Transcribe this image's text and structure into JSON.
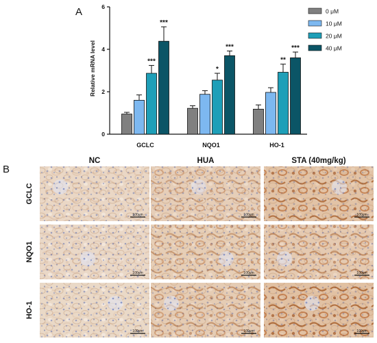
{
  "panel_a_label": "A",
  "panel_b_label": "B",
  "chart_data": {
    "type": "bar",
    "ylabel": "Relative mRNA level",
    "xlabel": "",
    "ylim": [
      0,
      6
    ],
    "yticks": [
      0,
      2,
      4,
      6
    ],
    "categories": [
      "GCLC",
      "NQO1",
      "HO-1"
    ],
    "legend_position": "top-right",
    "grid": false,
    "series": [
      {
        "name": "0  μM",
        "color": "#808080",
        "values": [
          0.95,
          1.22,
          1.18
        ],
        "errors": [
          0.08,
          0.12,
          0.2
        ],
        "sig": [
          "",
          "",
          ""
        ]
      },
      {
        "name": "10 μM",
        "color": "#7db8f0",
        "values": [
          1.6,
          1.88,
          1.97
        ],
        "errors": [
          0.25,
          0.17,
          0.22
        ],
        "sig": [
          "",
          "",
          ""
        ]
      },
      {
        "name": "20 μM",
        "color": "#1e9fb8",
        "values": [
          2.87,
          2.55,
          2.92
        ],
        "errors": [
          0.37,
          0.32,
          0.38
        ],
        "sig": [
          "***",
          "*",
          "**"
        ]
      },
      {
        "name": "40 μM",
        "color": "#0b5566",
        "values": [
          4.38,
          3.7,
          3.6
        ],
        "errors": [
          0.68,
          0.22,
          0.27
        ],
        "sig": [
          "***",
          "***",
          "***"
        ]
      }
    ]
  },
  "micrographs": {
    "columns": [
      "NC",
      "HUA",
      "STA (40mg/kg)"
    ],
    "rows": [
      "GCLC",
      "NQO1",
      "HO-1"
    ],
    "scale_bar_label": "100μm",
    "stain_intensity": [
      [
        0.15,
        0.45,
        0.85
      ],
      [
        0.12,
        0.5,
        0.6
      ],
      [
        0.1,
        0.55,
        0.9
      ]
    ]
  }
}
